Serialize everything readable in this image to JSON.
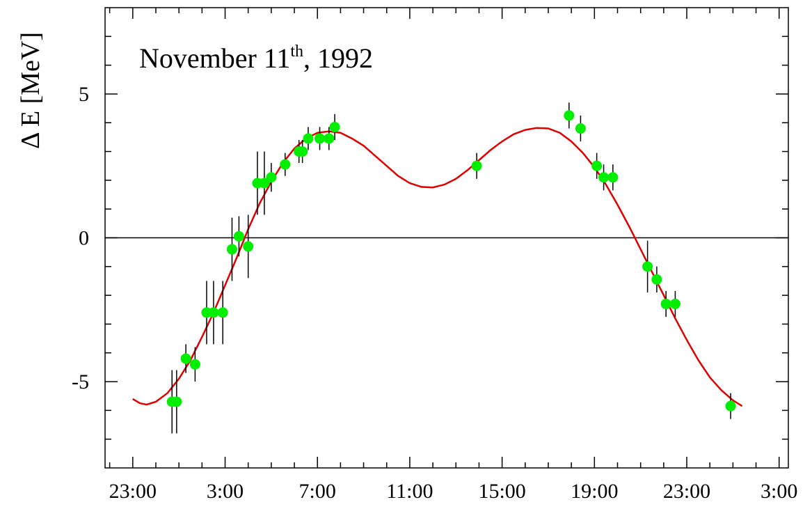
{
  "chart_data": {
    "type": "scatter",
    "title": {
      "prefix": "November 11",
      "superscript": "th",
      "suffix": ", 1992"
    },
    "xlabel": "",
    "ylabel": "Δ E [MeV]",
    "x_unit": "hours since 23:00 (Nov 10)",
    "xlim": [
      -1.2,
      28.4
    ],
    "ylim": [
      -8,
      8
    ],
    "x_ticks": [
      {
        "value": 0,
        "label": "23:00"
      },
      {
        "value": 4,
        "label": "3:00"
      },
      {
        "value": 8,
        "label": "7:00"
      },
      {
        "value": 12,
        "label": "11:00"
      },
      {
        "value": 16,
        "label": "15:00"
      },
      {
        "value": 20,
        "label": "19:00"
      },
      {
        "value": 24,
        "label": "23:00"
      },
      {
        "value": 28,
        "label": "3:00"
      }
    ],
    "y_ticks": [
      {
        "value": -5,
        "label": "-5"
      },
      {
        "value": 0,
        "label": "0"
      },
      {
        "value": 5,
        "label": "5"
      }
    ],
    "reference_line_y": 0,
    "series": [
      {
        "kind": "points-with-error-bars",
        "color": "#00ee00",
        "points": [
          {
            "x": 1.7,
            "y": -5.7,
            "err": 1.1
          },
          {
            "x": 1.9,
            "y": -5.7,
            "err": 1.1
          },
          {
            "x": 2.3,
            "y": -4.2,
            "err": 0.5
          },
          {
            "x": 2.7,
            "y": -4.4,
            "err": 0.6
          },
          {
            "x": 3.2,
            "y": -2.6,
            "err": 1.1
          },
          {
            "x": 3.5,
            "y": -2.6,
            "err": 1.1
          },
          {
            "x": 3.9,
            "y": -2.6,
            "err": 1.1
          },
          {
            "x": 4.3,
            "y": -0.4,
            "err": 1.1
          },
          {
            "x": 4.6,
            "y": 0.05,
            "err": 0.7
          },
          {
            "x": 5.0,
            "y": -0.3,
            "err": 1.1
          },
          {
            "x": 5.4,
            "y": 1.9,
            "err": 1.1
          },
          {
            "x": 5.7,
            "y": 1.9,
            "err": 1.1
          },
          {
            "x": 6.0,
            "y": 2.1,
            "err": 0.5
          },
          {
            "x": 6.6,
            "y": 2.55,
            "err": 0.4
          },
          {
            "x": 7.2,
            "y": 3.0,
            "err": 0.4
          },
          {
            "x": 7.35,
            "y": 3.0,
            "err": 0.4
          },
          {
            "x": 7.6,
            "y": 3.45,
            "err": 0.4
          },
          {
            "x": 8.1,
            "y": 3.45,
            "err": 0.4
          },
          {
            "x": 8.5,
            "y": 3.45,
            "err": 0.4
          },
          {
            "x": 8.75,
            "y": 3.85,
            "err": 0.45
          },
          {
            "x": 14.9,
            "y": 2.5,
            "err": 0.45
          },
          {
            "x": 18.9,
            "y": 4.25,
            "err": 0.45
          },
          {
            "x": 19.4,
            "y": 3.8,
            "err": 0.45
          },
          {
            "x": 20.1,
            "y": 2.5,
            "err": 0.45
          },
          {
            "x": 20.4,
            "y": 2.1,
            "err": 0.45
          },
          {
            "x": 20.8,
            "y": 2.1,
            "err": 0.45
          },
          {
            "x": 22.3,
            "y": -1.0,
            "err": 0.9
          },
          {
            "x": 22.7,
            "y": -1.45,
            "err": 0.45
          },
          {
            "x": 23.1,
            "y": -2.3,
            "err": 0.45
          },
          {
            "x": 23.5,
            "y": -2.3,
            "err": 0.45
          },
          {
            "x": 25.9,
            "y": -5.85,
            "err": 0.45
          }
        ]
      },
      {
        "kind": "fit-curve",
        "color": "#dd0000",
        "points": [
          [
            0.0,
            -5.6
          ],
          [
            0.3,
            -5.75
          ],
          [
            0.6,
            -5.8
          ],
          [
            1.0,
            -5.7
          ],
          [
            1.5,
            -5.4
          ],
          [
            2.0,
            -4.9
          ],
          [
            2.5,
            -4.25
          ],
          [
            3.0,
            -3.45
          ],
          [
            3.5,
            -2.6
          ],
          [
            4.0,
            -1.65
          ],
          [
            4.5,
            -0.7
          ],
          [
            5.0,
            0.3
          ],
          [
            5.5,
            1.2
          ],
          [
            6.0,
            1.95
          ],
          [
            6.5,
            2.6
          ],
          [
            7.0,
            3.1
          ],
          [
            7.5,
            3.45
          ],
          [
            8.0,
            3.65
          ],
          [
            8.5,
            3.7
          ],
          [
            9.0,
            3.65
          ],
          [
            9.5,
            3.45
          ],
          [
            10.0,
            3.2
          ],
          [
            10.5,
            2.85
          ],
          [
            11.0,
            2.5
          ],
          [
            11.5,
            2.15
          ],
          [
            12.0,
            1.9
          ],
          [
            12.5,
            1.77
          ],
          [
            13.0,
            1.75
          ],
          [
            13.5,
            1.85
          ],
          [
            14.0,
            2.05
          ],
          [
            14.5,
            2.35
          ],
          [
            15.0,
            2.7
          ],
          [
            15.5,
            3.05
          ],
          [
            16.0,
            3.35
          ],
          [
            16.5,
            3.6
          ],
          [
            17.0,
            3.75
          ],
          [
            17.5,
            3.82
          ],
          [
            18.0,
            3.8
          ],
          [
            18.5,
            3.65
          ],
          [
            19.0,
            3.35
          ],
          [
            19.5,
            2.95
          ],
          [
            20.0,
            2.45
          ],
          [
            20.5,
            1.85
          ],
          [
            21.0,
            1.15
          ],
          [
            21.5,
            0.4
          ],
          [
            22.0,
            -0.4
          ],
          [
            22.5,
            -1.2
          ],
          [
            23.0,
            -2.0
          ],
          [
            23.5,
            -2.8
          ],
          [
            24.0,
            -3.55
          ],
          [
            24.5,
            -4.25
          ],
          [
            25.0,
            -4.85
          ],
          [
            25.5,
            -5.3
          ],
          [
            26.0,
            -5.65
          ],
          [
            26.4,
            -5.85
          ]
        ]
      }
    ]
  }
}
